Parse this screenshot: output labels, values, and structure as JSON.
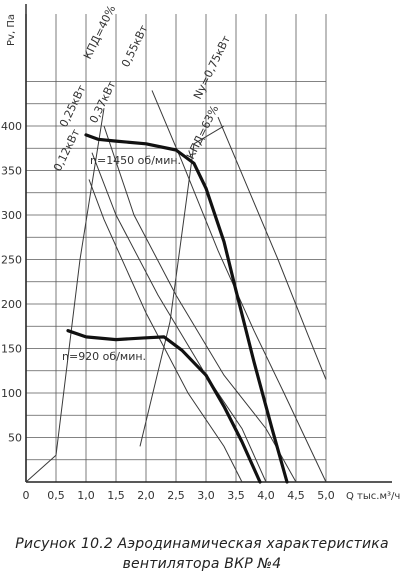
{
  "chart_data": {
    "type": "line",
    "x_axis": {
      "label": "Q тыс.м³/ч",
      "range": [
        0,
        5.0
      ],
      "ticks": [
        "0",
        "0,5",
        "1,0",
        "1,5",
        "2,0",
        "2,5",
        "3,0",
        "3,5",
        "4,0",
        "4,5",
        "5,0"
      ]
    },
    "y_axis": {
      "label": "Pv, Па",
      "range": [
        0,
        400
      ],
      "ticks": [
        "50",
        "100",
        "150",
        "200",
        "250",
        "300",
        "350",
        "400"
      ]
    },
    "grid": true,
    "pressure_curves": [
      {
        "label": "n=1450 об/мин.",
        "points": [
          [
            1.0,
            390
          ],
          [
            1.2,
            385
          ],
          [
            1.5,
            383
          ],
          [
            2.0,
            380
          ],
          [
            2.5,
            373
          ],
          [
            2.8,
            358
          ],
          [
            3.0,
            330
          ],
          [
            3.3,
            270
          ],
          [
            3.5,
            215
          ],
          [
            3.8,
            135
          ],
          [
            4.1,
            60
          ],
          [
            4.35,
            0
          ]
        ]
      },
      {
        "label": "n=920 об/мин.",
        "points": [
          [
            0.7,
            170
          ],
          [
            1.0,
            163
          ],
          [
            1.5,
            160
          ],
          [
            2.0,
            162
          ],
          [
            2.3,
            163
          ],
          [
            2.6,
            148
          ],
          [
            3.0,
            120
          ],
          [
            3.3,
            85
          ],
          [
            3.6,
            45
          ],
          [
            3.9,
            0
          ]
        ]
      }
    ],
    "power_lines": [
      {
        "label": "0,12кВт",
        "points": [
          [
            1.05,
            340
          ],
          [
            1.3,
            295
          ],
          [
            2.0,
            190
          ],
          [
            2.7,
            100
          ],
          [
            3.3,
            40
          ],
          [
            3.6,
            0
          ]
        ]
      },
      {
        "label": "0,25кВт",
        "points": [
          [
            1.1,
            370
          ],
          [
            1.5,
            300
          ],
          [
            2.2,
            210
          ],
          [
            3.0,
            120
          ],
          [
            3.6,
            60
          ],
          [
            4.0,
            0
          ]
        ]
      },
      {
        "label": "0,37кВт",
        "points": [
          [
            1.3,
            400
          ],
          [
            1.8,
            300
          ],
          [
            2.5,
            210
          ],
          [
            3.3,
            120
          ],
          [
            4.0,
            60
          ],
          [
            4.5,
            0
          ]
        ]
      },
      {
        "label": "0,55кВт",
        "points": [
          [
            2.1,
            440
          ],
          [
            2.6,
            360
          ],
          [
            3.2,
            260
          ],
          [
            3.8,
            170
          ],
          [
            4.3,
            100
          ],
          [
            5.0,
            0
          ]
        ]
      },
      {
        "label": "Nу=0,75кВт",
        "points": [
          [
            3.2,
            410
          ],
          [
            3.7,
            330
          ],
          [
            4.2,
            250
          ],
          [
            4.7,
            165
          ],
          [
            5.0,
            115
          ]
        ]
      }
    ],
    "efficiency_lines": [
      {
        "label": "КПД=40%",
        "points": [
          [
            0.0,
            0
          ],
          [
            0.5,
            30
          ],
          [
            0.9,
            250
          ],
          [
            1.3,
            420
          ]
        ]
      },
      {
        "label": "КПД=63%",
        "points": [
          [
            1.9,
            40
          ],
          [
            2.4,
            180
          ],
          [
            2.8,
            380
          ],
          [
            3.3,
            400
          ]
        ]
      }
    ]
  },
  "caption": {
    "line1": "Рисунок 10.2 Аэродинамическая характеристика",
    "line2": "вентилятора  ВКР №4"
  },
  "colors": {
    "grid": "#5a5a5a",
    "thin_line": "#3a3a3a",
    "thick_line": "#111111",
    "background": "#ffffff"
  }
}
